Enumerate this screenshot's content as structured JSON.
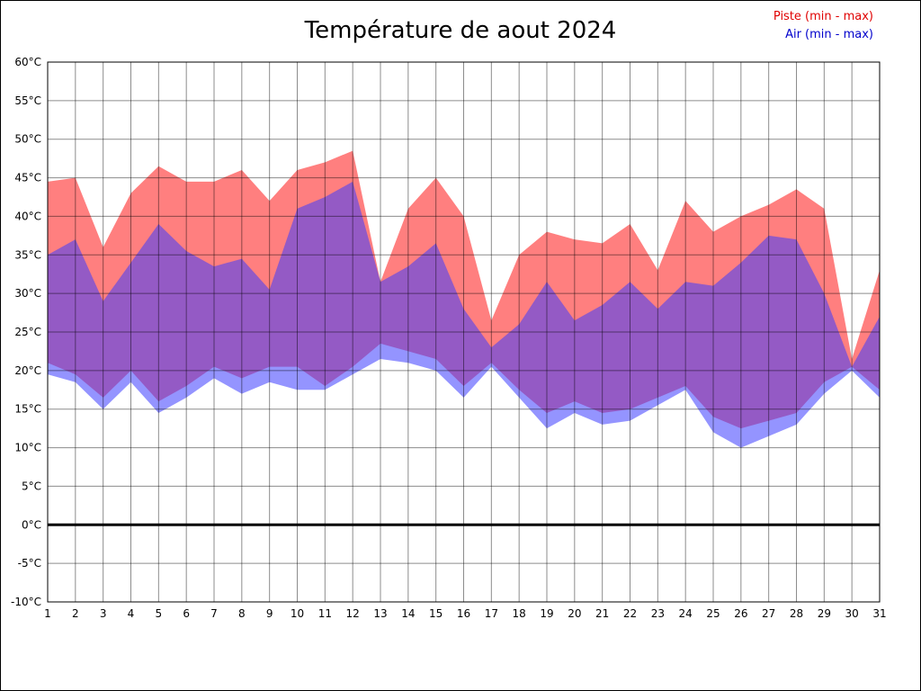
{
  "chart": {
    "title": "Température de aout 2024",
    "legend": {
      "piste": "Piste (min - max)",
      "air": "Air (min - max)"
    },
    "colors": {
      "piste_fill": "#ff7f7f",
      "air_fill": "#3c3cff",
      "air_opacity": 0.55,
      "piste_legend_text": "#e00000",
      "air_legend_text": "#0000cc",
      "zero_line": "#000000",
      "grid_line": "rgba(0,0,0,0.45)"
    }
  },
  "chart_data": {
    "type": "area",
    "title": "Température de aout 2024",
    "xlabel": "",
    "ylabel": "",
    "ylim": [
      -10,
      60
    ],
    "grid": true,
    "legend_position": "top-right",
    "x": [
      1,
      2,
      3,
      4,
      5,
      6,
      7,
      8,
      9,
      10,
      11,
      12,
      13,
      14,
      15,
      16,
      17,
      18,
      19,
      20,
      21,
      22,
      23,
      24,
      25,
      26,
      27,
      28,
      29,
      30,
      31
    ],
    "y_tick_labels": [
      "60°C",
      "55°C",
      "50°C",
      "45°C",
      "40°C",
      "35°C",
      "30°C",
      "25°C",
      "20°C",
      "15°C",
      "10°C",
      "5°C",
      "0°C",
      "-5°C",
      "-10°C"
    ],
    "series": [
      {
        "name": "Piste max",
        "values": [
          44.5,
          45,
          36,
          43,
          46.5,
          44.5,
          44.5,
          46,
          42,
          46,
          47,
          48.5,
          31.5,
          41,
          45,
          40,
          26.5,
          35,
          38,
          37,
          36.5,
          39,
          33,
          42,
          38,
          40,
          41.5,
          43.5,
          41,
          21.5,
          33
        ]
      },
      {
        "name": "Piste min",
        "values": [
          21,
          19.5,
          16.5,
          20,
          16,
          18,
          20.5,
          19,
          20.5,
          20.5,
          18,
          20.5,
          23.5,
          22.5,
          21.5,
          18,
          21,
          17.5,
          14.5,
          16,
          14.5,
          15,
          16.5,
          18,
          14,
          12.5,
          13.5,
          14.5,
          18.5,
          20.5,
          17.5
        ]
      },
      {
        "name": "Air max",
        "values": [
          35,
          37,
          29,
          34,
          39,
          35.5,
          33.5,
          34.5,
          30.5,
          41,
          42.5,
          44.5,
          31.5,
          33.5,
          36.5,
          28,
          23,
          26,
          31.5,
          26.5,
          28.5,
          31.5,
          28,
          31.5,
          31,
          34,
          37.5,
          37,
          30,
          20.5,
          27
        ]
      },
      {
        "name": "Air min",
        "values": [
          19.5,
          18.5,
          15,
          18.5,
          14.5,
          16.5,
          19,
          17,
          18.5,
          17.5,
          17.5,
          19.5,
          21.5,
          21,
          20,
          16.5,
          20.5,
          16.5,
          12.5,
          14.5,
          13,
          13.5,
          15.5,
          17.5,
          12,
          10,
          11.5,
          13,
          17,
          20,
          16.5
        ]
      }
    ]
  }
}
